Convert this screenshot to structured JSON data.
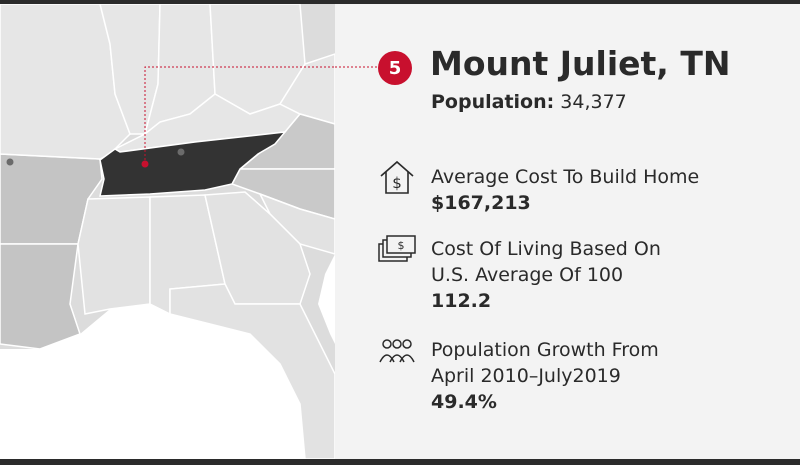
{
  "map": {
    "highlighted_state": "Tennessee",
    "highlight_color": "#333333",
    "state_color": "#e2e2e2",
    "neighbor_color": "#c9c9c9",
    "marker_color": "#c8102e"
  },
  "header": {
    "rank": "5",
    "city": "Mount Juliet, TN",
    "population_label": "Population:",
    "population_value": "34,377"
  },
  "stats": [
    {
      "icon": "house-dollar-icon",
      "label_lines": [
        "Average Cost To Build Home"
      ],
      "value": "$167,213"
    },
    {
      "icon": "money-stack-icon",
      "label_lines": [
        "Cost Of Living Based On",
        "U.S. Average Of 100"
      ],
      "value": "112.2"
    },
    {
      "icon": "people-group-icon",
      "label_lines": [
        "Population Growth From",
        "April 2010–July2019"
      ],
      "value": "49.4%"
    }
  ]
}
